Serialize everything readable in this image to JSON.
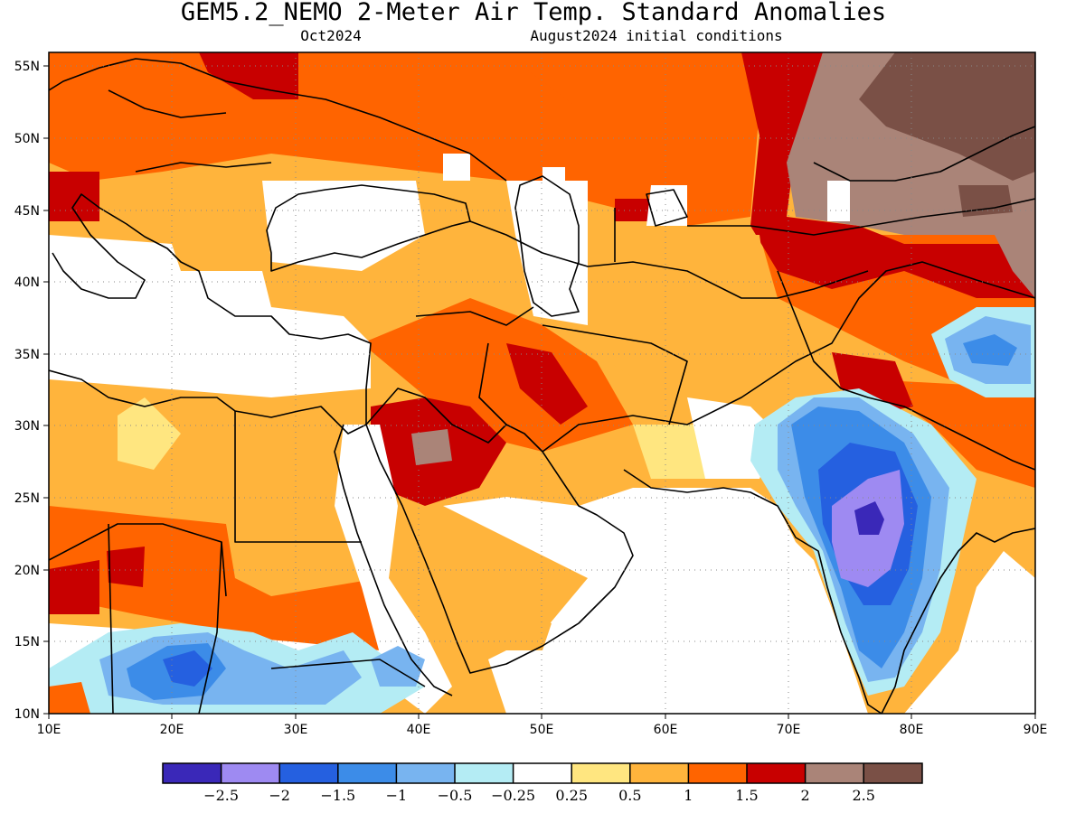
{
  "title": "GEM5.2_NEMO 2-Meter Air Temp. Standard Anomalies",
  "valid_month": "Oct2024",
  "init_conditions": "August2024 initial conditions",
  "axes": {
    "lon_ticks": [
      "10E",
      "20E",
      "30E",
      "40E",
      "50E",
      "60E",
      "70E",
      "80E",
      "90E"
    ],
    "lat_ticks": [
      "55N",
      "50N",
      "45N",
      "40N",
      "35N",
      "30N",
      "25N",
      "20N",
      "15N",
      "10N"
    ],
    "lon_range": [
      10,
      90
    ],
    "lat_range": [
      10,
      56
    ],
    "grid": "dotted"
  },
  "legend": {
    "labels": [
      "−2.5",
      "−2",
      "−1.5",
      "−1",
      "−0.5",
      "−0.25",
      "0.25",
      "0.5",
      "1",
      "1.5",
      "2",
      "2.5"
    ],
    "colors": [
      "#3a28b8",
      "#9e8af2",
      "#2560e0",
      "#3c8ce8",
      "#78b4f0",
      "#b4ecf4",
      "#ffffff",
      "#ffe680",
      "#ffb43c",
      "#ff6400",
      "#c80000",
      "#aa8478",
      "#7a5046"
    ]
  }
}
